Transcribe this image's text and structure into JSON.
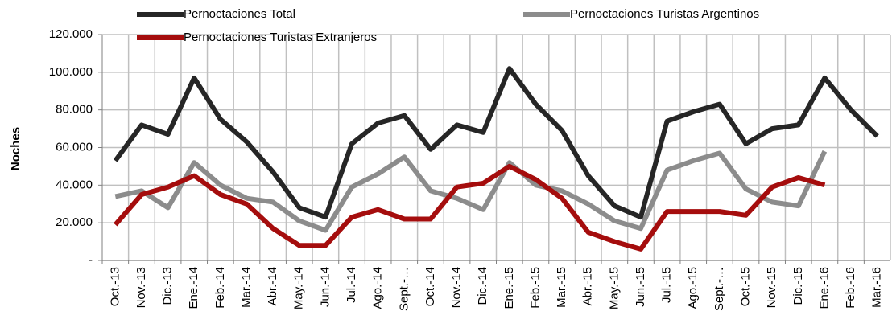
{
  "chart_data": {
    "type": "line",
    "y_label": "Noches",
    "categories": [
      "Oct.-13",
      "Nov.-13",
      "Dic.-13",
      "Ene.-14",
      "Feb.-14",
      "Mar.-14",
      "Abr.-14",
      "May.-14",
      "Jun.-14",
      "Jul.-14",
      "Ago.-14",
      "Sept.-…",
      "Oct.-14",
      "Nov.-14",
      "Dic.-14",
      "Ene.-15",
      "Feb.-15",
      "Mar.-15",
      "Abr.-15",
      "May.-15",
      "Jun.-15",
      "Jul.-15",
      "Ago.-15",
      "Sept.-…",
      "Oct.-15",
      "Nov.-15",
      "Dic.-15",
      "Ene.-16",
      "Feb.-16",
      "Mar.-16"
    ],
    "series": [
      {
        "name": "Pernoctaciones Total",
        "color": "#262626",
        "values": [
          53000,
          72000,
          67000,
          97000,
          75000,
          63000,
          47000,
          28000,
          23000,
          62000,
          73000,
          77000,
          59000,
          72000,
          68000,
          102000,
          83000,
          69000,
          45000,
          29000,
          23000,
          74000,
          79000,
          83000,
          62000,
          70000,
          72000,
          97000,
          80000,
          66000
        ]
      },
      {
        "name": "Pernoctaciones Turistas Argentinos",
        "color": "#8c8c8c",
        "values": [
          34000,
          37000,
          28000,
          52000,
          40000,
          33000,
          31000,
          21000,
          16000,
          39000,
          46000,
          55000,
          37000,
          33000,
          27000,
          52000,
          40000,
          37000,
          30000,
          21000,
          17000,
          48000,
          53000,
          57000,
          38000,
          31000,
          29000,
          58000,
          null,
          null
        ]
      },
      {
        "name": "Pernoctaciones Turistas Extranjeros",
        "color": "#a50d0d",
        "values": [
          19000,
          35000,
          39000,
          45000,
          35000,
          30000,
          17000,
          8000,
          8000,
          23000,
          27000,
          22000,
          22000,
          39000,
          41000,
          50000,
          43000,
          33000,
          15000,
          10000,
          6000,
          26000,
          26000,
          26000,
          24000,
          39000,
          44000,
          40000,
          null,
          null
        ]
      }
    ],
    "ylim": [
      0,
      120000
    ],
    "yticks": [
      {
        "value": 0,
        "label": "-"
      },
      {
        "value": 20000,
        "label": "20.000"
      },
      {
        "value": 40000,
        "label": "40.000"
      },
      {
        "value": 60000,
        "label": "60.000"
      },
      {
        "value": 80000,
        "label": "80.000"
      },
      {
        "value": 100000,
        "label": "100.000"
      },
      {
        "value": 120000,
        "label": "120.000"
      }
    ],
    "grid": true
  }
}
